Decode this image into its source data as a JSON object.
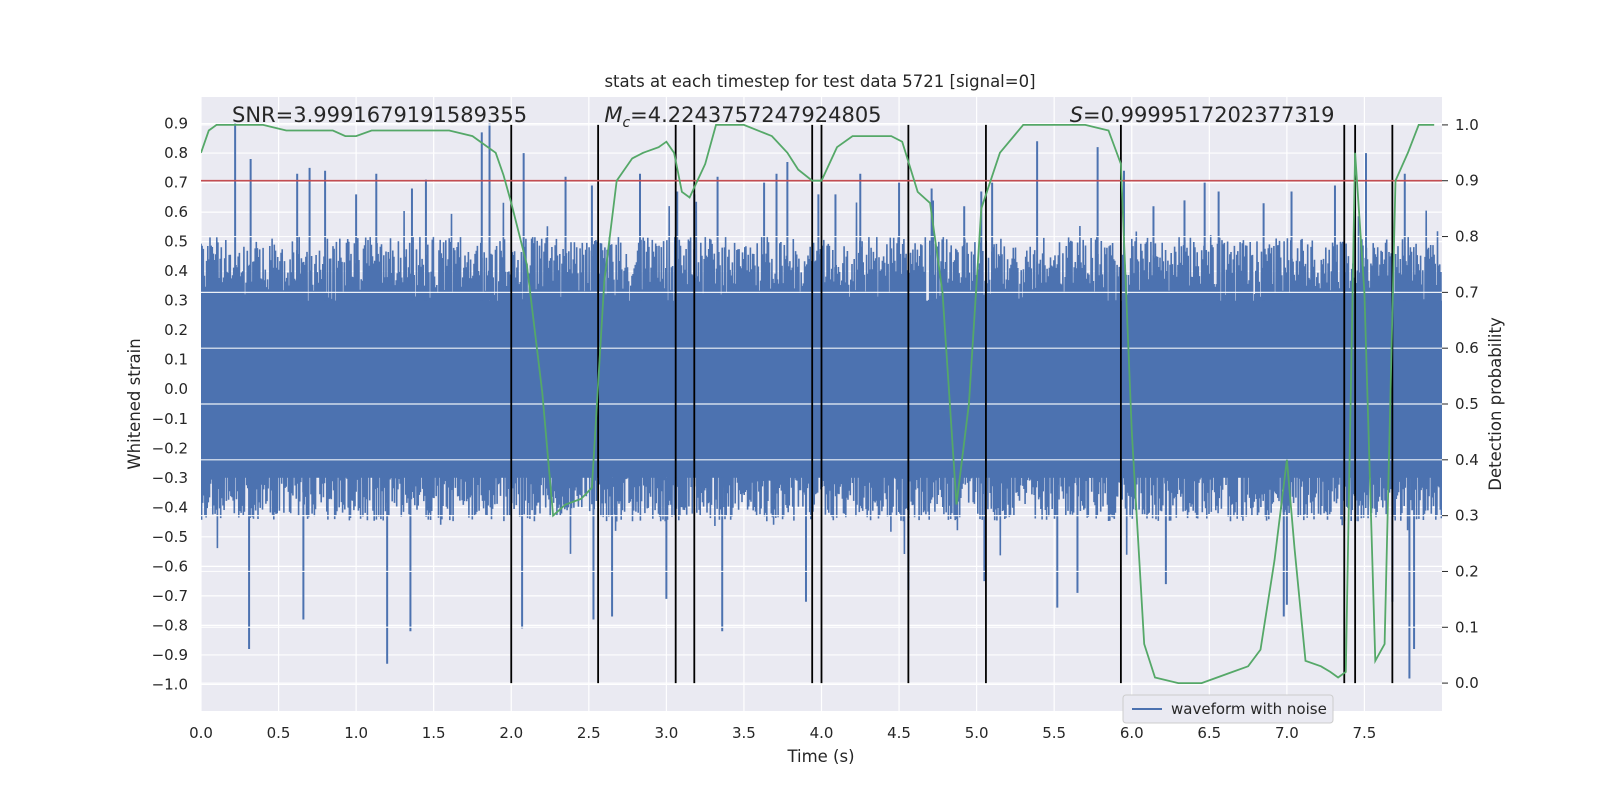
{
  "chart_data": {
    "type": "line",
    "title": "stats at each timestep for test data 5721 [signal=0]",
    "xlabel": "Time (s)",
    "ylabel": "Whitened strain",
    "y2label": "Detection probability",
    "xlim": [
      0.0,
      8.0
    ],
    "ylim": [
      -1.09,
      0.99
    ],
    "y2lim": [
      -0.05,
      1.05
    ],
    "xticks": [
      0.0,
      0.5,
      1.0,
      1.5,
      2.0,
      2.5,
      3.0,
      3.5,
      4.0,
      4.5,
      5.0,
      5.5,
      6.0,
      6.5,
      7.0,
      7.5
    ],
    "xtick_labels": [
      "0.0",
      "0.5",
      "1.0",
      "1.5",
      "2.0",
      "2.5",
      "3.0",
      "3.5",
      "4.0",
      "4.5",
      "5.0",
      "5.5",
      "6.0",
      "6.5",
      "7.0",
      "7.5"
    ],
    "yticks": [
      0.9,
      0.8,
      0.7,
      0.6,
      0.5,
      0.4,
      0.3,
      0.2,
      0.1,
      0.0,
      -0.1,
      -0.2,
      -0.3,
      -0.4,
      -0.5,
      -0.6,
      -0.7,
      -0.8,
      -0.9,
      -1.0
    ],
    "ytick_labels": [
      "0.9",
      "0.8",
      "0.7",
      "0.6",
      "0.5",
      "0.4",
      "0.3",
      "0.2",
      "0.1",
      "0.0",
      "−0.1",
      "−0.2",
      "−0.3",
      "−0.4",
      "−0.5",
      "−0.6",
      "−0.7",
      "−0.8",
      "−0.9",
      "−1.0"
    ],
    "y2ticks": [
      1.0,
      0.9,
      0.8,
      0.7,
      0.6,
      0.5,
      0.4,
      0.3,
      0.2,
      0.1,
      0.0
    ],
    "y2tick_labels": [
      "1.0",
      "0.9",
      "0.8",
      "0.7",
      "0.6",
      "0.5",
      "0.4",
      "0.3",
      "0.2",
      "0.1",
      "0.0"
    ],
    "grid": true,
    "threshold": {
      "value": 0.9,
      "axis": "y2",
      "color": "#c44e52"
    },
    "vertical_lines": [
      2.0,
      2.56,
      3.06,
      3.18,
      3.94,
      4.0,
      4.56,
      5.06,
      5.93,
      7.37,
      7.44,
      7.68
    ],
    "waveform": {
      "name": "waveform with noise",
      "color": "#4c72b0",
      "envelope_typical": [
        -0.45,
        0.52
      ],
      "spikes": [
        {
          "x": 0.22,
          "y": 0.9
        },
        {
          "x": 0.32,
          "y": 0.78
        },
        {
          "x": 0.62,
          "y": 0.73
        },
        {
          "x": 0.7,
          "y": 0.75
        },
        {
          "x": 0.8,
          "y": 0.74
        },
        {
          "x": 1.0,
          "y": 0.66
        },
        {
          "x": 1.13,
          "y": 0.73
        },
        {
          "x": 1.36,
          "y": 0.68
        },
        {
          "x": 1.45,
          "y": 0.71
        },
        {
          "x": 1.81,
          "y": 0.87
        },
        {
          "x": 1.86,
          "y": 0.9
        },
        {
          "x": 2.08,
          "y": 0.8
        },
        {
          "x": 2.35,
          "y": 0.72
        },
        {
          "x": 2.52,
          "y": 0.69
        },
        {
          "x": 2.83,
          "y": 0.73
        },
        {
          "x": 3.07,
          "y": 0.67
        },
        {
          "x": 3.18,
          "y": 0.66
        },
        {
          "x": 3.33,
          "y": 0.72
        },
        {
          "x": 3.63,
          "y": 0.7
        },
        {
          "x": 3.71,
          "y": 0.73
        },
        {
          "x": 3.78,
          "y": 0.77
        },
        {
          "x": 3.98,
          "y": 0.66
        },
        {
          "x": 4.09,
          "y": 0.66
        },
        {
          "x": 4.25,
          "y": 0.73
        },
        {
          "x": 4.5,
          "y": 0.7
        },
        {
          "x": 4.71,
          "y": 0.68
        },
        {
          "x": 4.92,
          "y": 0.62
        },
        {
          "x": 5.03,
          "y": 0.67
        },
        {
          "x": 5.1,
          "y": 0.7
        },
        {
          "x": 5.39,
          "y": 0.84
        },
        {
          "x": 5.78,
          "y": 0.82
        },
        {
          "x": 5.95,
          "y": 0.74
        },
        {
          "x": 6.14,
          "y": 0.62
        },
        {
          "x": 6.34,
          "y": 0.64
        },
        {
          "x": 6.47,
          "y": 0.7
        },
        {
          "x": 6.56,
          "y": 0.67
        },
        {
          "x": 6.85,
          "y": 0.63
        },
        {
          "x": 7.03,
          "y": 0.67
        },
        {
          "x": 7.31,
          "y": 0.69
        },
        {
          "x": 7.51,
          "y": 0.8
        },
        {
          "x": 7.76,
          "y": 0.73
        },
        {
          "x": 0.31,
          "y": -0.88
        },
        {
          "x": 0.66,
          "y": -0.78
        },
        {
          "x": 1.2,
          "y": -0.93
        },
        {
          "x": 1.35,
          "y": -0.82
        },
        {
          "x": 2.07,
          "y": -0.81
        },
        {
          "x": 2.53,
          "y": -0.78
        },
        {
          "x": 2.65,
          "y": -0.77
        },
        {
          "x": 3.0,
          "y": -0.71
        },
        {
          "x": 3.36,
          "y": -0.82
        },
        {
          "x": 3.9,
          "y": -0.72
        },
        {
          "x": 4.56,
          "y": -0.68
        },
        {
          "x": 5.05,
          "y": -0.65
        },
        {
          "x": 5.52,
          "y": -0.74
        },
        {
          "x": 5.65,
          "y": -0.69
        },
        {
          "x": 6.22,
          "y": -0.66
        },
        {
          "x": 6.98,
          "y": -0.77
        },
        {
          "x": 7.0,
          "y": -0.73
        },
        {
          "x": 7.68,
          "y": -0.72
        },
        {
          "x": 7.79,
          "y": -0.98
        },
        {
          "x": 7.82,
          "y": -0.88
        }
      ]
    },
    "probability": {
      "name": "detection probability",
      "color": "#55a868",
      "x": [
        0.0,
        0.05,
        0.1,
        0.25,
        0.4,
        0.55,
        0.85,
        0.93,
        1.0,
        1.1,
        1.3,
        1.6,
        1.75,
        1.9,
        1.95,
        2.0,
        2.1,
        2.2,
        2.27,
        2.35,
        2.45,
        2.52,
        2.6,
        2.68,
        2.78,
        2.85,
        2.95,
        3.0,
        3.05,
        3.1,
        3.15,
        3.2,
        3.25,
        3.32,
        3.5,
        3.68,
        3.78,
        3.85,
        3.94,
        4.0,
        4.1,
        4.2,
        4.3,
        4.45,
        4.52,
        4.62,
        4.7,
        4.78,
        4.87,
        4.95,
        5.03,
        5.15,
        5.3,
        5.5,
        5.7,
        5.85,
        5.93,
        6.0,
        6.08,
        6.15,
        6.3,
        6.45,
        6.55,
        6.65,
        6.75,
        6.83,
        6.92,
        7.0,
        7.05,
        7.12,
        7.22,
        7.28,
        7.33,
        7.38,
        7.44,
        7.5,
        7.57,
        7.63,
        7.7,
        7.78,
        7.85,
        7.95
      ],
      "y": [
        0.95,
        0.99,
        1.0,
        1.0,
        1.0,
        0.99,
        0.99,
        0.98,
        0.98,
        0.99,
        0.99,
        0.99,
        0.98,
        0.95,
        0.91,
        0.86,
        0.75,
        0.52,
        0.3,
        0.32,
        0.33,
        0.35,
        0.72,
        0.9,
        0.94,
        0.95,
        0.96,
        0.97,
        0.95,
        0.88,
        0.87,
        0.9,
        0.93,
        1.0,
        1.0,
        0.98,
        0.95,
        0.92,
        0.9,
        0.9,
        0.96,
        0.98,
        0.98,
        0.98,
        0.97,
        0.88,
        0.86,
        0.7,
        0.32,
        0.5,
        0.85,
        0.95,
        1.0,
        1.0,
        1.0,
        0.99,
        0.93,
        0.45,
        0.07,
        0.01,
        0.0,
        0.0,
        0.01,
        0.02,
        0.03,
        0.06,
        0.22,
        0.4,
        0.24,
        0.04,
        0.03,
        0.02,
        0.01,
        0.02,
        0.95,
        0.7,
        0.04,
        0.07,
        0.9,
        0.95,
        1.0,
        1.0
      ]
    },
    "annotations": [
      {
        "x": 0.2,
        "text": "SNR=3.9991679191589355"
      },
      {
        "x": 2.6,
        "text": "=4.2243757247924805",
        "var": "M",
        "sub": "c"
      },
      {
        "x": 5.6,
        "text": "=0.9999517202377319",
        "var": "S"
      }
    ],
    "legend": {
      "position": "bottom-right",
      "entries": [
        "waveform with noise"
      ]
    }
  }
}
